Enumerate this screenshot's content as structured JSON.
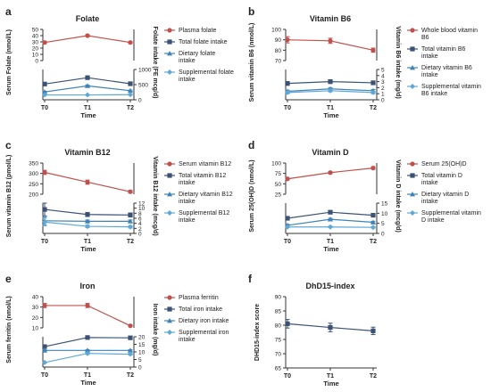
{
  "colors": {
    "red": "#c0504d",
    "navy": "#3b5275",
    "blue": "#3d82b8",
    "lightblue": "#5ea8d6",
    "axis": "#333333"
  },
  "chart_data": [
    {
      "panel": "a",
      "title": "Folate",
      "type": "line",
      "categories": [
        "T0",
        "T1",
        "T2"
      ],
      "xlabel": "Time",
      "top": {
        "ylabel": "Serum Folate (nmol/L)",
        "ylim": [
          0,
          50
        ],
        "ticks": [
          0,
          10,
          20,
          30,
          40,
          50
        ],
        "ticks_axis": [
          50,
          40,
          30,
          20,
          10,
          0
        ],
        "axis_break": true,
        "series": [
          {
            "name": "Plasma folate",
            "color": "red",
            "marker": "circle",
            "values": [
              29,
              40,
              29
            ],
            "err": [
              2,
              1.5,
              1.5
            ]
          }
        ]
      },
      "bottom": {
        "ylabel": "Folate intake (FE mcg/d)",
        "ylim": [
          0,
          1000
        ],
        "ticks": [
          0,
          500,
          1000
        ],
        "side": "right",
        "series": [
          {
            "name": "Total folate intake",
            "color": "navy",
            "marker": "square",
            "values": [
              520,
              730,
              530
            ],
            "err": [
              30,
              30,
              25
            ]
          },
          {
            "name": "Dietary folate intake",
            "color": "blue",
            "marker": "triangle",
            "values": [
              260,
              460,
              300
            ],
            "err": [
              20,
              30,
              20
            ]
          },
          {
            "name": "Supplemental folate intake",
            "color": "lightblue",
            "marker": "diamond",
            "values": [
              160,
              160,
              170
            ],
            "err": [
              15,
              15,
              15
            ]
          }
        ]
      }
    },
    {
      "panel": "b",
      "title": "Vitamin  B6",
      "type": "line",
      "categories": [
        "T0",
        "T1",
        "T2"
      ],
      "xlabel": "Time",
      "top": {
        "ylabel": "Serum vitamin B6 (nmol/L)",
        "ylim": [
          70,
          100
        ],
        "ticks": [
          70,
          80,
          90,
          100
        ],
        "ticks_axis": [
          100,
          90,
          80,
          70
        ],
        "axis_break": true,
        "series": [
          {
            "name": "Whole blood vitamin B6",
            "color": "red",
            "marker": "circle",
            "values": [
              90,
              89,
              80
            ],
            "err": [
              3,
              2.5,
              2
            ]
          }
        ]
      },
      "bottom": {
        "ylabel": "Vitamin B6 intake (mg/d)",
        "ylim": [
          0,
          5
        ],
        "ticks": [
          0,
          1,
          2,
          3,
          4,
          5
        ],
        "side": "right",
        "series": [
          {
            "name": "Total vitamin B6 intake",
            "color": "navy",
            "marker": "square",
            "values": [
              2.7,
              3.0,
              2.8
            ],
            "err": [
              0.3,
              0.3,
              0.3
            ]
          },
          {
            "name": "Dietary vitamin B6 intake",
            "color": "blue",
            "marker": "triangle",
            "values": [
              1.4,
              1.8,
              1.5
            ],
            "err": [
              0.2,
              0.2,
              0.2
            ]
          },
          {
            "name": "Supplemental vitamin B6 intake",
            "color": "lightblue",
            "marker": "diamond",
            "values": [
              1.2,
              1.5,
              1.2
            ],
            "err": [
              0.2,
              0.2,
              0.2
            ]
          }
        ]
      }
    },
    {
      "panel": "c",
      "title": "Vitamin B12",
      "type": "line",
      "categories": [
        "T0",
        "T1",
        "T2"
      ],
      "xlabel": "Time",
      "top": {
        "ylabel": "Serum vitamin B12 (pmol/L)",
        "ylim": [
          200,
          350
        ],
        "ticks": [
          200,
          250,
          300,
          350
        ],
        "ticks_axis": [
          350,
          300,
          250,
          200
        ],
        "axis_break": true,
        "series": [
          {
            "name": "Serum vitamin B12",
            "color": "red",
            "marker": "circle",
            "values": [
              305,
              258,
              212
            ],
            "err": [
              10,
              10,
              6
            ]
          }
        ]
      },
      "bottom": {
        "ylabel": "Vitamin B12 intake (mcg/d)",
        "ylim": [
          0,
          12
        ],
        "ticks": [
          0,
          2,
          4,
          6,
          8,
          10,
          12
        ],
        "side": "right",
        "series": [
          {
            "name": "Total vitamin B12 intake",
            "color": "navy",
            "marker": "square",
            "values": [
              9.5,
              7.5,
              7.3
            ],
            "err": [
              2.5,
              0.8,
              0.8
            ]
          },
          {
            "name": "Dietary vitamin B12 intake",
            "color": "blue",
            "marker": "triangle",
            "values": [
              5.0,
              4.8,
              4.8
            ],
            "err": [
              1.5,
              0.5,
              0.5
            ]
          },
          {
            "name": "Supplemental B12 intake",
            "color": "lightblue",
            "marker": "diamond",
            "values": [
              4.5,
              2.8,
              2.6
            ],
            "err": [
              1.5,
              0.5,
              0.5
            ]
          }
        ]
      }
    },
    {
      "panel": "d",
      "title": "Vitamin  D",
      "type": "line",
      "categories": [
        "T0",
        "T1",
        "T2"
      ],
      "xlabel": "Time",
      "top": {
        "ylabel": "Serum 25(OH)D (nmol/L)",
        "ylim": [
          25,
          100
        ],
        "ticks": [
          25,
          50,
          75,
          100
        ],
        "ticks_axis": [
          100,
          75,
          50,
          25
        ],
        "axis_break": true,
        "series": [
          {
            "name": "Serum 25(OH)D",
            "color": "red",
            "marker": "circle",
            "values": [
              62,
              77,
              88
            ],
            "err": [
              2,
              2,
              3
            ]
          }
        ]
      },
      "bottom": {
        "ylabel": "Vitamin  D intake (mcg/d)",
        "ylim": [
          0,
          15
        ],
        "ticks": [
          0,
          5,
          10,
          15
        ],
        "side": "right",
        "series": [
          {
            "name": "Total vitamin D intake",
            "color": "navy",
            "marker": "square",
            "values": [
              7.5,
              10.5,
              9.0
            ],
            "err": [
              0.7,
              0.7,
              0.6
            ]
          },
          {
            "name": "Dietary vitamin D intake",
            "color": "blue",
            "marker": "triangle",
            "values": [
              4.0,
              7.0,
              5.5
            ],
            "err": [
              0.5,
              0.5,
              0.5
            ]
          },
          {
            "name": "Supplemental vitamin D intake",
            "color": "lightblue",
            "marker": "diamond",
            "values": [
              3.2,
              3.2,
              3.0
            ],
            "err": [
              0.4,
              0.4,
              0.4
            ]
          }
        ]
      }
    },
    {
      "panel": "e",
      "title": "Iron",
      "type": "line",
      "categories": [
        "T0",
        "T1",
        "T2"
      ],
      "xlabel": "Time",
      "top": {
        "ylabel": "Serum ferritin (nmol/L)",
        "ylim": [
          10,
          40
        ],
        "ticks": [
          10,
          20,
          30,
          40
        ],
        "ticks_axis": [
          40,
          30,
          20,
          10
        ],
        "axis_break": true,
        "series": [
          {
            "name": "Plasma ferritin",
            "color": "red",
            "marker": "circle",
            "values": [
              31.5,
              31.5,
              12
            ],
            "err": [
              2,
              2,
              0.8
            ]
          }
        ]
      },
      "bottom": {
        "ylabel": "Iron intake (mg/d)",
        "ylim": [
          0,
          20
        ],
        "ticks": [
          0,
          5,
          10,
          15,
          20
        ],
        "side": "right",
        "series": [
          {
            "name": "Total iron intake",
            "color": "navy",
            "marker": "square",
            "values": [
              13.5,
              19.5,
              19.3
            ],
            "err": [
              0.5,
              0.5,
              0.5
            ]
          },
          {
            "name": "Dietary iron intake",
            "color": "blue",
            "marker": "triangle",
            "values": [
              11.0,
              11.0,
              11.0
            ],
            "err": [
              0.4,
              0.4,
              0.4
            ]
          },
          {
            "name": "Supplemental iron intake",
            "color": "lightblue",
            "marker": "diamond",
            "values": [
              3.0,
              9.0,
              8.5
            ],
            "err": [
              0.4,
              0.6,
              0.6
            ]
          }
        ]
      }
    },
    {
      "panel": "f",
      "title": "DhD15-index",
      "type": "line",
      "categories": [
        "T0",
        "T1",
        "T2"
      ],
      "xlabel": "Time",
      "top": {
        "ylabel": "DHD15-index score",
        "ylim": [
          65,
          90
        ],
        "ticks": [
          65,
          70,
          75,
          80,
          85,
          90
        ],
        "ticks_axis": [
          90,
          85,
          80,
          75,
          70,
          65
        ],
        "axis_break": false,
        "series": [
          {
            "color": "navy",
            "marker": "square",
            "values": [
              80.5,
              79.2,
              78.0
            ],
            "err": [
              1.5,
              1.5,
              1.3
            ]
          }
        ]
      }
    }
  ]
}
